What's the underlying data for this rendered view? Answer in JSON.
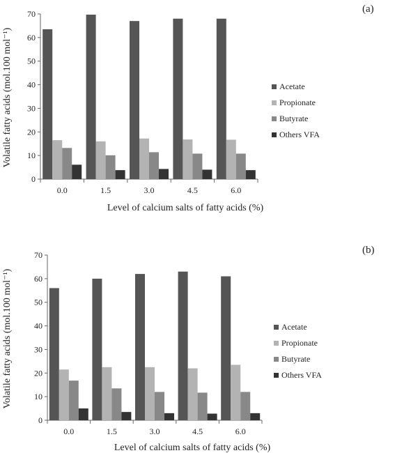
{
  "chart_data": [
    {
      "type": "bar",
      "panel_label": "(a)",
      "categories": [
        "0.0",
        "1.5",
        "3.0",
        "4.5",
        "6.0"
      ],
      "series": [
        {
          "name": "Acetate",
          "color": "#555555",
          "values": [
            63.5,
            69.7,
            67.0,
            68.0,
            68.0
          ]
        },
        {
          "name": "Propionate",
          "color": "#b3b3b3",
          "values": [
            16.5,
            16.0,
            17.2,
            16.8,
            16.7
          ]
        },
        {
          "name": "Butyrate",
          "color": "#888888",
          "values": [
            13.2,
            10.1,
            11.4,
            10.8,
            10.8
          ]
        },
        {
          "name": "Others VFA",
          "color": "#333333",
          "values": [
            6.1,
            3.8,
            4.3,
            4.0,
            3.8
          ]
        }
      ],
      "xlabel": "Level of calcium salts of fatty acids (%)",
      "ylabel": "Volatile fatty acids (mol.100 mol⁻¹)",
      "ylim": [
        0,
        70
      ],
      "yticks": [
        "0",
        "10",
        "20",
        "30",
        "40",
        "50",
        "60",
        "70"
      ],
      "grid": false,
      "legend_position": "right"
    },
    {
      "type": "bar",
      "panel_label": "(b)",
      "categories": [
        "0.0",
        "1.5",
        "3.0",
        "4.5",
        "6.0"
      ],
      "series": [
        {
          "name": "Acetate",
          "color": "#555555",
          "values": [
            56.0,
            60.0,
            62.0,
            63.0,
            61.0
          ]
        },
        {
          "name": "Propionate",
          "color": "#b3b3b3",
          "values": [
            21.5,
            22.5,
            22.5,
            22.0,
            23.5
          ]
        },
        {
          "name": "Butyrate",
          "color": "#888888",
          "values": [
            16.8,
            13.5,
            12.0,
            11.7,
            12.0
          ]
        },
        {
          "name": "Others VFA",
          "color": "#333333",
          "values": [
            5.0,
            3.5,
            3.0,
            2.8,
            3.0
          ]
        }
      ],
      "xlabel": "Level of calcium salts of fatty acids (%)",
      "ylabel": "Volatile fatty acids (mol.100 mol⁻¹)",
      "ylim": [
        0,
        70
      ],
      "yticks": [
        "0",
        "10",
        "20",
        "30",
        "40",
        "50",
        "60",
        "70"
      ],
      "grid": false,
      "legend_position": "right"
    }
  ]
}
